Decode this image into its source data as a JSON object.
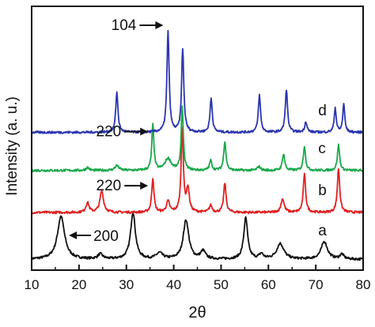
{
  "chart_data": {
    "type": "line",
    "xlabel": "2θ",
    "ylabel": "Intensity (a. u.)",
    "xlim": [
      10,
      80
    ],
    "x_ticks": [
      "10",
      "20",
      "30",
      "40",
      "50",
      "60",
      "70",
      "80"
    ],
    "grid": false,
    "y_ticks_labeled": false,
    "series": [
      {
        "name": "a",
        "color": "#111111",
        "baseline": 0.55,
        "peaks": [
          {
            "x": 16.2,
            "h": 2.2,
            "w": 0.9
          },
          {
            "x": 24.5,
            "h": 0.25,
            "w": 0.6
          },
          {
            "x": 31.4,
            "h": 2.4,
            "w": 0.6
          },
          {
            "x": 37.0,
            "h": 0.3,
            "w": 0.8
          },
          {
            "x": 42.6,
            "h": 2.0,
            "w": 0.7
          },
          {
            "x": 46.2,
            "h": 0.4,
            "w": 0.6
          },
          {
            "x": 55.2,
            "h": 2.1,
            "w": 0.5
          },
          {
            "x": 58.5,
            "h": 0.25,
            "w": 0.5
          },
          {
            "x": 62.5,
            "h": 0.8,
            "w": 0.9
          },
          {
            "x": 71.8,
            "h": 0.9,
            "w": 0.8
          },
          {
            "x": 75.5,
            "h": 0.25,
            "w": 0.5
          }
        ]
      },
      {
        "name": "b",
        "color": "#e02020",
        "baseline": 2.95,
        "peaks": [
          {
            "x": 21.8,
            "h": 0.5,
            "w": 0.4
          },
          {
            "x": 24.8,
            "h": 1.1,
            "w": 0.45
          },
          {
            "x": 35.6,
            "h": 1.75,
            "w": 0.28
          },
          {
            "x": 38.8,
            "h": 0.55,
            "w": 0.4
          },
          {
            "x": 41.8,
            "h": 4.3,
            "w": 0.28
          },
          {
            "x": 43.0,
            "h": 1.2,
            "w": 0.35
          },
          {
            "x": 47.8,
            "h": 0.35,
            "w": 0.35
          },
          {
            "x": 50.8,
            "h": 1.5,
            "w": 0.3
          },
          {
            "x": 63.0,
            "h": 0.7,
            "w": 0.4
          },
          {
            "x": 67.6,
            "h": 1.95,
            "w": 0.3
          },
          {
            "x": 74.8,
            "h": 2.25,
            "w": 0.3
          }
        ]
      },
      {
        "name": "c",
        "color": "#1aa84a",
        "baseline": 5.1,
        "peaks": [
          {
            "x": 21.8,
            "h": 0.15,
            "w": 0.4
          },
          {
            "x": 28.0,
            "h": 0.25,
            "w": 0.5
          },
          {
            "x": 35.6,
            "h": 2.35,
            "w": 0.26
          },
          {
            "x": 38.8,
            "h": 0.6,
            "w": 0.8
          },
          {
            "x": 41.8,
            "h": 3.3,
            "w": 0.26
          },
          {
            "x": 47.8,
            "h": 0.5,
            "w": 0.3
          },
          {
            "x": 50.8,
            "h": 1.5,
            "w": 0.28
          },
          {
            "x": 58.0,
            "h": 0.2,
            "w": 0.4
          },
          {
            "x": 63.2,
            "h": 0.85,
            "w": 0.3
          },
          {
            "x": 67.6,
            "h": 1.25,
            "w": 0.28
          },
          {
            "x": 74.8,
            "h": 1.3,
            "w": 0.28
          }
        ]
      },
      {
        "name": "d",
        "color": "#2a35b0",
        "baseline": 7.05,
        "peaks": [
          {
            "x": 28.0,
            "h": 2.05,
            "w": 0.28
          },
          {
            "x": 38.8,
            "h": 5.15,
            "w": 0.28
          },
          {
            "x": 41.9,
            "h": 4.25,
            "w": 0.28
          },
          {
            "x": 47.9,
            "h": 1.75,
            "w": 0.28
          },
          {
            "x": 58.1,
            "h": 1.9,
            "w": 0.28
          },
          {
            "x": 63.8,
            "h": 2.2,
            "w": 0.28
          },
          {
            "x": 67.9,
            "h": 0.55,
            "w": 0.28
          },
          {
            "x": 74.1,
            "h": 1.25,
            "w": 0.25
          },
          {
            "x": 75.9,
            "h": 1.45,
            "w": 0.25
          }
        ]
      }
    ],
    "annotations": [
      {
        "text": "104",
        "x": 38.8,
        "series": "d",
        "arrow": "right"
      },
      {
        "text": "220",
        "x": 35.6,
        "series": "c",
        "arrow": "right"
      },
      {
        "text": "220",
        "x": 35.6,
        "series": "b",
        "arrow": "right"
      },
      {
        "text": "200",
        "x": 16.2,
        "series": "a",
        "arrow": "left"
      }
    ]
  }
}
